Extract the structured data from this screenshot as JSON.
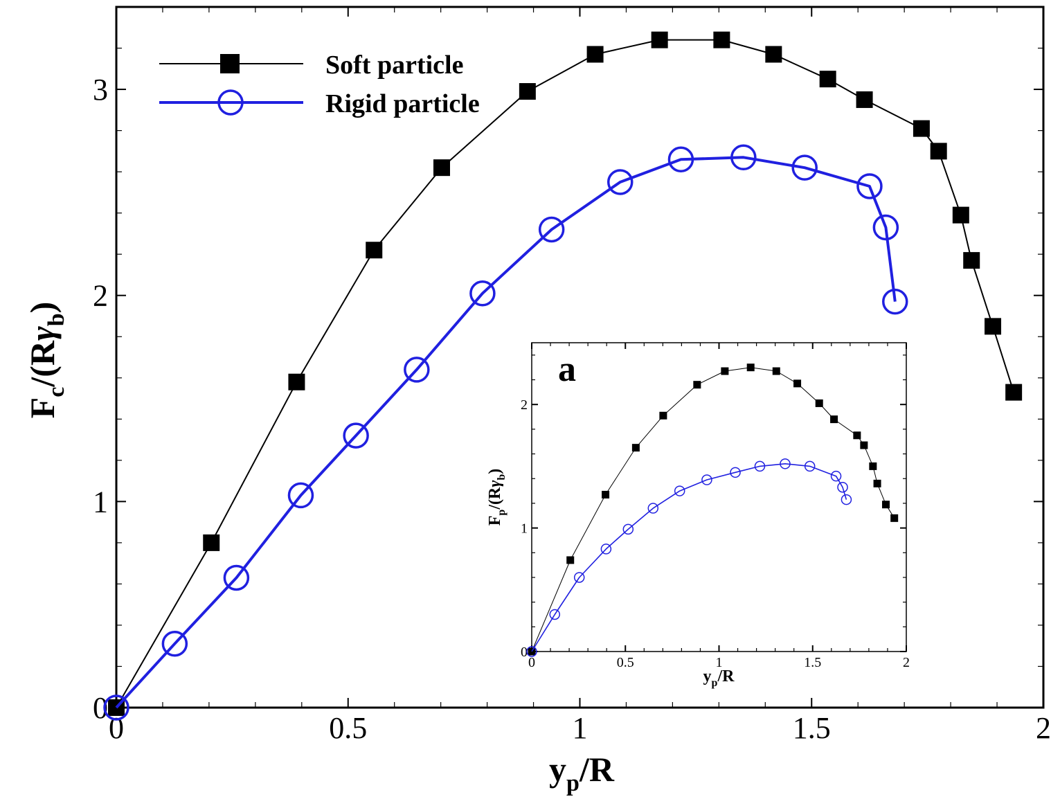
{
  "chart_data": [
    {
      "id": "main",
      "type": "line",
      "xlabel": {
        "base": "y",
        "sub": "p",
        "rest": "/R"
      },
      "ylabel": {
        "base": "F",
        "sub": "c",
        "mid": "/(R",
        "greek": "γ",
        "gsub": "b",
        "close": ")"
      },
      "xlim": [
        0,
        2
      ],
      "ylim": [
        0,
        3.4
      ],
      "xticks": [
        {
          "v": 0,
          "label": "0"
        },
        {
          "v": 0.5,
          "label": "0.5"
        },
        {
          "v": 1,
          "label": "1"
        },
        {
          "v": 1.5,
          "label": "1.5"
        },
        {
          "v": 2,
          "label": "2"
        }
      ],
      "yticks": [
        {
          "v": 0,
          "label": "0"
        },
        {
          "v": 1,
          "label": "1"
        },
        {
          "v": 2,
          "label": "2"
        },
        {
          "v": 3,
          "label": "3"
        }
      ],
      "legend": {
        "placement": "top-left",
        "entries": [
          "Soft particle",
          "Rigid particle"
        ]
      },
      "series": [
        {
          "name": "Soft particle",
          "color": "#000000",
          "marker": "square",
          "x": [
            0,
            0.205,
            0.389,
            0.556,
            0.702,
            0.887,
            1.033,
            1.172,
            1.306,
            1.418,
            1.535,
            1.614,
            1.737,
            1.774,
            1.822,
            1.845,
            1.891,
            1.936
          ],
          "y": [
            0,
            0.8,
            1.58,
            2.22,
            2.62,
            2.99,
            3.17,
            3.24,
            3.24,
            3.17,
            3.05,
            2.95,
            2.81,
            2.7,
            2.39,
            2.17,
            1.85,
            1.53
          ]
        },
        {
          "name": "Rigid particle",
          "color": "#2020e0",
          "marker": "circle",
          "x": [
            0,
            0.126,
            0.259,
            0.398,
            0.517,
            0.648,
            0.79,
            0.939,
            1.087,
            1.218,
            1.353,
            1.485,
            1.625,
            1.66,
            1.68
          ],
          "y": [
            0,
            0.31,
            0.63,
            1.03,
            1.32,
            1.64,
            2.01,
            2.32,
            2.55,
            2.66,
            2.67,
            2.62,
            2.53,
            2.33,
            1.97
          ]
        }
      ]
    },
    {
      "id": "inset",
      "type": "line",
      "panel_label": "a",
      "xlabel": {
        "base": "y",
        "sub": "p",
        "rest": "/R"
      },
      "ylabel": {
        "base": "F",
        "sub": "p",
        "mid": "/(R",
        "greek": "γ",
        "gsub": "b",
        "close": ")"
      },
      "xlim": [
        0,
        2
      ],
      "ylim": [
        0,
        2.5
      ],
      "xticks": [
        {
          "v": 0,
          "label": "0"
        },
        {
          "v": 0.5,
          "label": "0.5"
        },
        {
          "v": 1,
          "label": "1"
        },
        {
          "v": 1.5,
          "label": "1.5"
        },
        {
          "v": 2,
          "label": "2"
        }
      ],
      "yticks": [
        {
          "v": 0,
          "label": "0"
        },
        {
          "v": 1,
          "label": "1"
        },
        {
          "v": 2,
          "label": "2"
        }
      ],
      "series": [
        {
          "name": "Soft particle",
          "color": "#000000",
          "marker": "square",
          "x": [
            0,
            0.206,
            0.394,
            0.556,
            0.702,
            0.883,
            1.031,
            1.169,
            1.306,
            1.418,
            1.535,
            1.614,
            1.737,
            1.774,
            1.822,
            1.845,
            1.891,
            1.936
          ],
          "y": [
            0,
            0.74,
            1.27,
            1.65,
            1.91,
            2.16,
            2.27,
            2.3,
            2.27,
            2.17,
            2.01,
            1.88,
            1.75,
            1.67,
            1.5,
            1.36,
            1.19,
            1.08
          ]
        },
        {
          "name": "Rigid particle",
          "color": "#2020e0",
          "marker": "circle",
          "x": [
            0,
            0.123,
            0.254,
            0.397,
            0.515,
            0.648,
            0.79,
            0.935,
            1.087,
            1.218,
            1.353,
            1.485,
            1.625,
            1.66,
            1.68
          ],
          "y": [
            0,
            0.3,
            0.6,
            0.83,
            0.99,
            1.16,
            1.3,
            1.39,
            1.45,
            1.5,
            1.52,
            1.5,
            1.42,
            1.33,
            1.23
          ]
        }
      ]
    }
  ]
}
